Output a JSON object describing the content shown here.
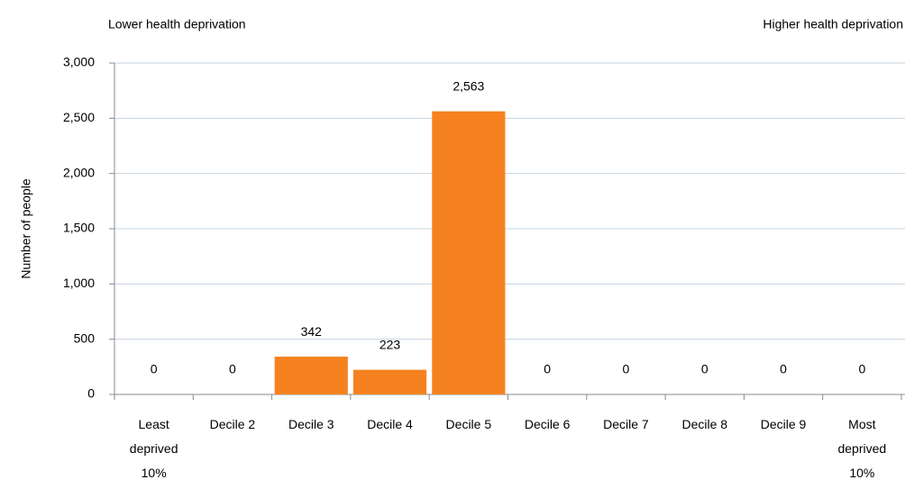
{
  "chart_data": {
    "type": "bar",
    "annotations": [
      "Lower health deprivation",
      "Higher health deprivation"
    ],
    "y_label": "Number of people",
    "categories": [
      "Least deprived 10%",
      "Decile 2",
      "Decile 3",
      "Decile 4",
      "Decile 5",
      "Decile 6",
      "Decile 7",
      "Decile 8",
      "Decile 9",
      "Most deprived 10%"
    ],
    "values": [
      0,
      0,
      342,
      223,
      2563,
      0,
      0,
      0,
      0,
      0
    ],
    "value_labels": [
      "0",
      "0",
      "342",
      "223",
      "2,563",
      "0",
      "0",
      "0",
      "0",
      "0"
    ],
    "color": "#f5821f",
    "ylim": [
      0,
      3000
    ],
    "yticks": [
      0,
      500,
      {
        "value": 1000,
        "label": "1,000"
      },
      {
        "value": 1500,
        "label": "1,500"
      },
      {
        "value": 2000,
        "label": "2,000"
      },
      {
        "value": 2500,
        "label": "2,500"
      },
      {
        "value": 3000,
        "label": "3,000"
      }
    ],
    "grid": true
  }
}
